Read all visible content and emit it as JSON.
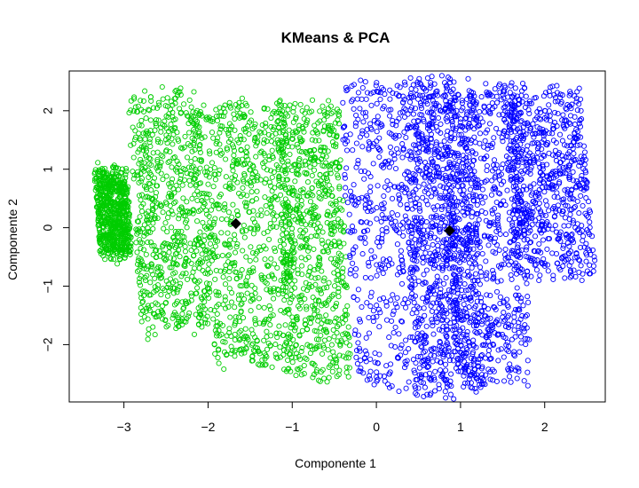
{
  "chart_data": {
    "type": "scatter",
    "title": "KMeans & PCA",
    "xlabel": "Componente 1",
    "ylabel": "Componente 2",
    "xlim": [
      -3.65,
      2.72
    ],
    "ylim": [
      -2.98,
      2.68
    ],
    "xticks": [
      -3,
      -2,
      -1,
      0,
      1,
      2
    ],
    "yticks": [
      -2,
      -1,
      0,
      1,
      2
    ],
    "grid": false,
    "legend": "none",
    "marker": "open-circle",
    "series": [
      {
        "color": "#00CD00",
        "x_range": [
          -3.6,
          -0.3
        ],
        "y_range": [
          -2.55,
          2.3
        ],
        "bands": [
          {
            "x": [
              -3.35,
              -2.9
            ],
            "y": [
              -0.45,
              0.95
            ]
          },
          {
            "x": [
              -2.95,
              -1.95
            ],
            "y": [
              -1.75,
              2.3
            ]
          },
          {
            "x": [
              -2.1,
              -0.9
            ],
            "y": [
              -2.35,
              2.1
            ]
          },
          {
            "x": [
              -1.2,
              -0.3
            ],
            "y": [
              -2.55,
              2.1
            ]
          }
        ]
      },
      {
        "color": "#0000FF",
        "x_range": [
          -0.5,
          2.6
        ],
        "y_range": [
          -2.8,
          2.55
        ],
        "bands": [
          {
            "x": [
              -0.45,
              1.05
            ],
            "y": [
              -2.8,
              2.5
            ]
          },
          {
            "x": [
              0.3,
              1.3
            ],
            "y": [
              -2.8,
              2.45
            ]
          },
          {
            "x": [
              0.8,
              1.85
            ],
            "y": [
              -2.6,
              2.4
            ]
          },
          {
            "x": [
              1.5,
              2.6
            ],
            "y": [
              -0.8,
              2.35
            ]
          }
        ]
      }
    ],
    "centroids": [
      {
        "x": -1.67,
        "y": 0.07,
        "color": "#000000"
      },
      {
        "x": 0.87,
        "y": -0.05,
        "color": "#000000"
      }
    ]
  }
}
